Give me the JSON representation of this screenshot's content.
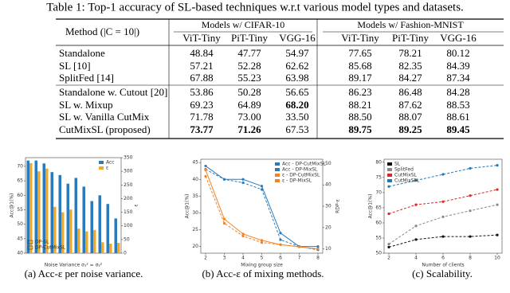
{
  "table": {
    "caption": "Table 1: Top-1 accuracy of SL-based techniques w.r.t various model types and datasets.",
    "method_header": "Method (|C = 10|)",
    "group_headers": [
      "Models w/ CIFAR-10",
      "Models w/ Fashion-MNIST"
    ],
    "columns": [
      "ViT-Tiny",
      "PiT-Tiny",
      "VGG-16",
      "ViT-Tiny",
      "PiT-Tiny",
      "VGG-16"
    ],
    "rows": [
      {
        "method": "Standalone",
        "values": [
          "48.84",
          "47.77",
          "54.97",
          "77.65",
          "78.21",
          "80.12"
        ],
        "bold": []
      },
      {
        "method": "SL [10]",
        "values": [
          "57.21",
          "52.28",
          "62.62",
          "85.68",
          "82.35",
          "84.39"
        ],
        "bold": []
      },
      {
        "method": "SplitFed [14]",
        "values": [
          "67.88",
          "55.23",
          "63.98",
          "89.17",
          "84.27",
          "87.34"
        ],
        "bold": []
      },
      {
        "method": "Standalone w. Cutout [20]",
        "values": [
          "53.86",
          "50.28",
          "56.65",
          "86.23",
          "86.48",
          "84.28"
        ],
        "bold": []
      },
      {
        "method": "SL w. Mixup",
        "values": [
          "69.23",
          "64.89",
          "68.20",
          "88.21",
          "87.62",
          "88.53"
        ],
        "bold": [
          2
        ]
      },
      {
        "method": "SL w. Vanilla CutMix",
        "values": [
          "71.78",
          "73.00",
          "33.50",
          "88.50",
          "88.07",
          "88.61"
        ],
        "bold": []
      },
      {
        "method": "CutMixSL (proposed)",
        "values": [
          "73.77",
          "71.26",
          "67.53",
          "89.75",
          "89.25",
          "89.45"
        ],
        "bold": [
          0,
          1,
          3,
          4,
          5
        ]
      }
    ]
  },
  "chart_data": [
    {
      "type": "bar",
      "caption": "(a) Acc-ε per noise variance.",
      "x_label": "Noise Variance σ₁² = σ₂²",
      "y_label": "Acc@1(%)",
      "y2_label": "ε",
      "categories": [
        null,
        null,
        null,
        null,
        null,
        null,
        null,
        null,
        null,
        null,
        null,
        null
      ],
      "series": [
        {
          "name": "Acc",
          "color": "#2b7bba",
          "values": [
            72,
            72,
            71,
            68,
            67,
            64,
            66,
            63,
            58,
            60,
            57,
            52
          ]
        },
        {
          "name": "ε",
          "color": "#f5a623",
          "axis": "y2",
          "values": [
            330,
            300,
            310,
            170,
            150,
            160,
            90,
            80,
            85,
            40,
            35,
            38
          ]
        }
      ],
      "hatch_legend": [
        "DP-SL",
        "DP-CutMixSL"
      ],
      "ylim": [
        40,
        73
      ],
      "yticks": [
        40,
        45,
        50,
        55,
        60,
        65,
        70
      ],
      "y2lim": [
        0,
        350
      ],
      "y2ticks": [
        0,
        50,
        100,
        150,
        200,
        250,
        300,
        350
      ],
      "legend": "upper right"
    },
    {
      "type": "line",
      "caption": "(b) Acc-ε of mixing methods.",
      "x_label": "Mixing group size",
      "y_label": "Acc@1(%)",
      "y2_label": "RDP-ε",
      "x": [
        2,
        3,
        4,
        5,
        6,
        7,
        8
      ],
      "series": [
        {
          "name": "Acc - DP-CutMixSL",
          "color": "#2b7bba",
          "dash": false,
          "values": [
            44,
            40,
            40,
            38,
            24,
            20,
            20
          ]
        },
        {
          "name": "Acc - DP-MixSL",
          "color": "#2b7bba",
          "dash": true,
          "values": [
            43,
            40,
            39,
            37,
            22,
            20,
            19
          ]
        },
        {
          "name": "ε - DP-CutMixSL",
          "color": "#f5821f",
          "dash": false,
          "axis": "y2",
          "values": [
            47,
            24,
            17,
            14,
            12,
            11,
            10
          ]
        },
        {
          "name": "ε - DP-MixSL",
          "color": "#f5821f",
          "dash": true,
          "axis": "y2",
          "values": [
            44,
            22,
            16,
            13,
            12,
            11,
            10
          ]
        }
      ],
      "xlim": [
        2,
        8
      ],
      "xticks": [
        2,
        3,
        4,
        5,
        6,
        7,
        8
      ],
      "ylim": [
        18,
        46
      ],
      "yticks": [
        20,
        25,
        30,
        35,
        40,
        45
      ],
      "y2lim": [
        8,
        52
      ],
      "y2ticks": [
        10,
        20,
        30,
        40,
        50
      ],
      "legend": "upper right"
    },
    {
      "type": "line",
      "caption": "(c) Scalability.",
      "x_label": "Number of clients",
      "y_label": "Acc@1(%)",
      "x": [
        2,
        4,
        6,
        8,
        10
      ],
      "series": [
        {
          "name": "SL",
          "color": "#111111",
          "dash": true,
          "values": [
            52,
            54.5,
            55.5,
            55.5,
            56
          ]
        },
        {
          "name": "SplitFed",
          "color": "#888888",
          "dash": true,
          "values": [
            53,
            59,
            62,
            64,
            66
          ]
        },
        {
          "name": "CutMixSL",
          "color": "#d62728",
          "dash": true,
          "values": [
            63,
            66,
            67,
            69,
            71
          ]
        },
        {
          "name": "CutMixSFL",
          "color": "#1f77b4",
          "dash": true,
          "values": [
            72,
            74,
            76,
            78,
            79
          ]
        }
      ],
      "xlim": [
        2,
        10
      ],
      "xticks": [
        2,
        4,
        6,
        8,
        10
      ],
      "ylim": [
        50,
        81
      ],
      "yticks": [
        50,
        55,
        60,
        65,
        70,
        75,
        80
      ],
      "legend": "upper left"
    }
  ]
}
